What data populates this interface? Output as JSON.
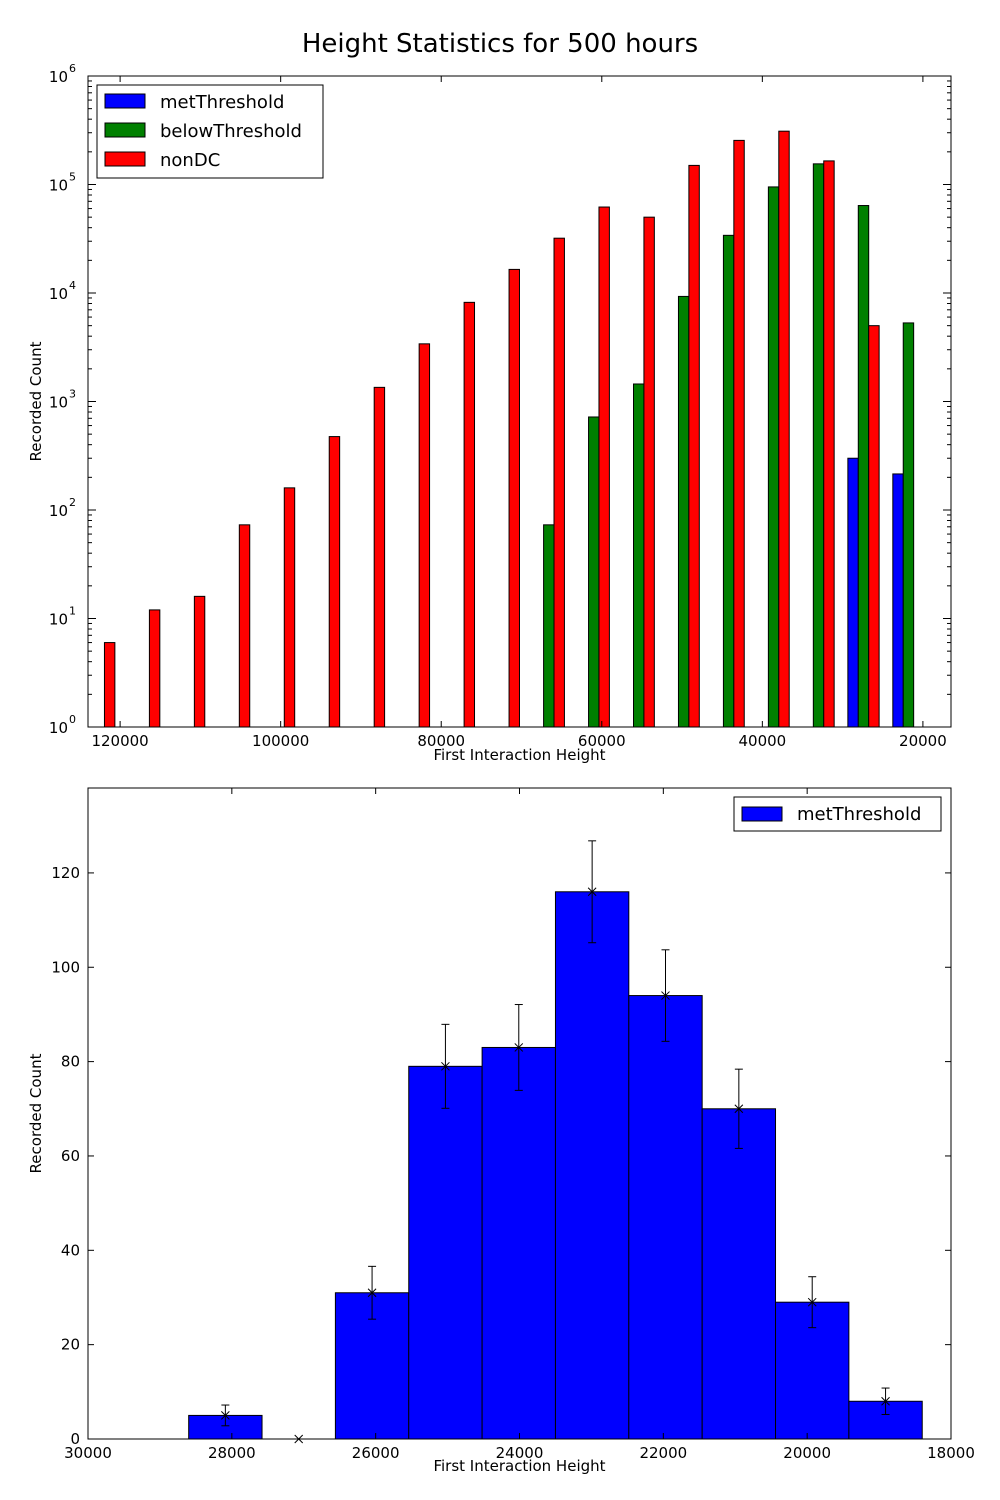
{
  "figure": {
    "title": "Height Statistics for 500 hours"
  },
  "chart_data": [
    {
      "type": "bar",
      "subtype": "grouped-histogram",
      "xlabel": "First Interaction Height",
      "ylabel": "Recorded Count",
      "yscale": "log",
      "ylim": [
        1,
        1000000
      ],
      "xlim": [
        124000,
        16500
      ],
      "x_inverted": true,
      "x_ticks": [
        120000,
        100000,
        80000,
        60000,
        40000,
        20000
      ],
      "x_tick_labels": [
        "120000",
        "100000",
        "80000",
        "60000",
        "40000",
        "20000"
      ],
      "y_ticks": [
        1,
        10,
        100,
        1000,
        10000,
        100000,
        1000000
      ],
      "y_tick_labels": [
        {
          "base": "10",
          "exp": "0"
        },
        {
          "base": "10",
          "exp": "1"
        },
        {
          "base": "10",
          "exp": "2"
        },
        {
          "base": "10",
          "exp": "3"
        },
        {
          "base": "10",
          "exp": "4"
        },
        {
          "base": "10",
          "exp": "5"
        },
        {
          "base": "10",
          "exp": "6"
        }
      ],
      "legend": {
        "position": "upper-left"
      },
      "bin_centers": [
        122600,
        117000,
        111400,
        105800,
        100200,
        94600,
        89000,
        83400,
        77800,
        72200,
        66600,
        61000,
        55400,
        49800,
        44200,
        38600,
        33000,
        27400,
        21800
      ],
      "series": [
        {
          "name": "metThreshold",
          "color": "#0000ff",
          "values": [
            0,
            0,
            0,
            0,
            0,
            0,
            0,
            0,
            0,
            0,
            0,
            0,
            0,
            0,
            0,
            0,
            0,
            300,
            215
          ]
        },
        {
          "name": "belowThreshold",
          "color": "#008000",
          "values": [
            0,
            0,
            0,
            0,
            0,
            0,
            0,
            0,
            0,
            0,
            73,
            720,
            1450,
            9300,
            34000,
            95000,
            155000,
            64000,
            5300
          ]
        },
        {
          "name": "nonDC",
          "color": "#ff0000",
          "values": [
            6,
            12,
            16,
            73,
            160,
            475,
            1350,
            3400,
            8200,
            16500,
            32000,
            62000,
            50000,
            150000,
            255000,
            310000,
            165000,
            5000,
            0
          ]
        }
      ]
    },
    {
      "type": "bar",
      "subtype": "histogram-with-errorbars",
      "xlabel": "First Interaction Height",
      "ylabel": "Recorded Count",
      "xlim": [
        30000,
        18000
      ],
      "x_inverted": true,
      "ylim": [
        0,
        138
      ],
      "x_ticks": [
        30000,
        28000,
        26000,
        24000,
        22000,
        20000,
        18000
      ],
      "x_tick_labels": [
        "30000",
        "28000",
        "26000",
        "24000",
        "22000",
        "20000",
        "18000"
      ],
      "y_ticks": [
        0,
        20,
        40,
        60,
        80,
        100,
        120
      ],
      "y_tick_labels": [
        "0",
        "20",
        "40",
        "60",
        "80",
        "100",
        "120"
      ],
      "legend": {
        "position": "upper-right"
      },
      "bin_edges": [
        28600,
        27580,
        26560,
        25540,
        24520,
        23500,
        22480,
        21460,
        20440,
        19420,
        18400
      ],
      "series": [
        {
          "name": "metThreshold",
          "color": "#0000ff",
          "values": [
            5,
            0,
            31,
            79,
            83,
            116,
            94,
            70,
            29,
            8
          ],
          "errors": [
            2.2,
            0,
            5.6,
            8.9,
            9.1,
            10.8,
            9.7,
            8.4,
            5.4,
            2.8
          ]
        }
      ]
    }
  ]
}
